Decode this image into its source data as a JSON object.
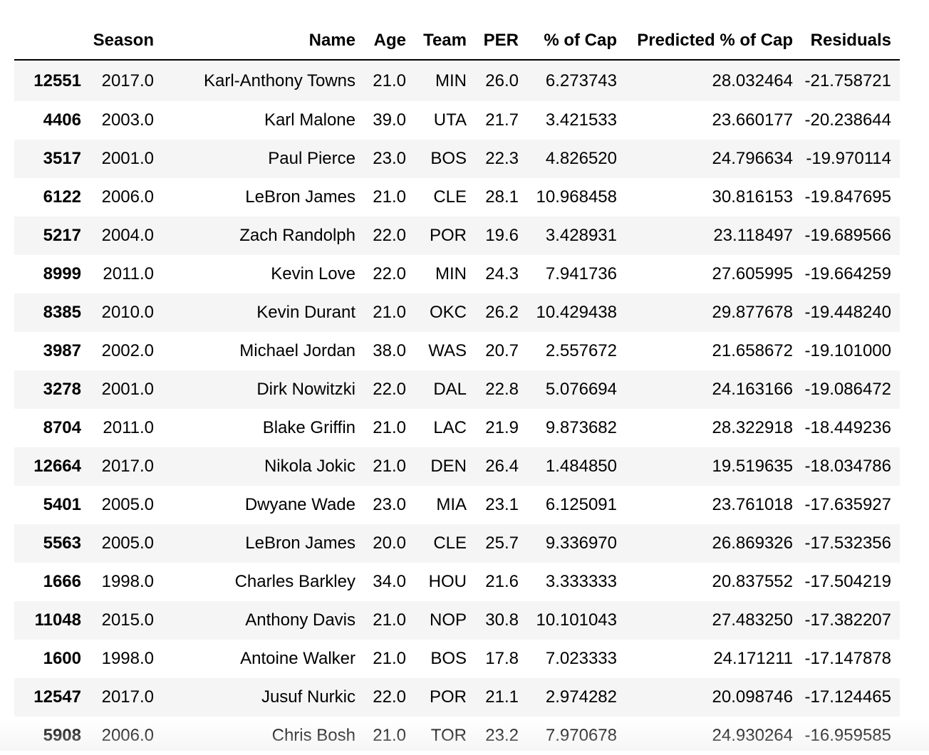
{
  "table": {
    "columns": [
      "",
      "Season",
      "Name",
      "Age",
      "Team",
      "PER",
      "% of Cap",
      "Predicted % of Cap",
      "Residuals"
    ],
    "rows": [
      {
        "index": "12551",
        "season": "2017.0",
        "name": "Karl-Anthony Towns",
        "age": "21.0",
        "team": "MIN",
        "per": "26.0",
        "pct_cap": "6.273743",
        "pred_pct_cap": "28.032464",
        "residuals": "-21.758721"
      },
      {
        "index": "4406",
        "season": "2003.0",
        "name": "Karl Malone",
        "age": "39.0",
        "team": "UTA",
        "per": "21.7",
        "pct_cap": "3.421533",
        "pred_pct_cap": "23.660177",
        "residuals": "-20.238644"
      },
      {
        "index": "3517",
        "season": "2001.0",
        "name": "Paul Pierce",
        "age": "23.0",
        "team": "BOS",
        "per": "22.3",
        "pct_cap": "4.826520",
        "pred_pct_cap": "24.796634",
        "residuals": "-19.970114"
      },
      {
        "index": "6122",
        "season": "2006.0",
        "name": "LeBron James",
        "age": "21.0",
        "team": "CLE",
        "per": "28.1",
        "pct_cap": "10.968458",
        "pred_pct_cap": "30.816153",
        "residuals": "-19.847695"
      },
      {
        "index": "5217",
        "season": "2004.0",
        "name": "Zach Randolph",
        "age": "22.0",
        "team": "POR",
        "per": "19.6",
        "pct_cap": "3.428931",
        "pred_pct_cap": "23.118497",
        "residuals": "-19.689566"
      },
      {
        "index": "8999",
        "season": "2011.0",
        "name": "Kevin Love",
        "age": "22.0",
        "team": "MIN",
        "per": "24.3",
        "pct_cap": "7.941736",
        "pred_pct_cap": "27.605995",
        "residuals": "-19.664259"
      },
      {
        "index": "8385",
        "season": "2010.0",
        "name": "Kevin Durant",
        "age": "21.0",
        "team": "OKC",
        "per": "26.2",
        "pct_cap": "10.429438",
        "pred_pct_cap": "29.877678",
        "residuals": "-19.448240"
      },
      {
        "index": "3987",
        "season": "2002.0",
        "name": "Michael Jordan",
        "age": "38.0",
        "team": "WAS",
        "per": "20.7",
        "pct_cap": "2.557672",
        "pred_pct_cap": "21.658672",
        "residuals": "-19.101000"
      },
      {
        "index": "3278",
        "season": "2001.0",
        "name": "Dirk Nowitzki",
        "age": "22.0",
        "team": "DAL",
        "per": "22.8",
        "pct_cap": "5.076694",
        "pred_pct_cap": "24.163166",
        "residuals": "-19.086472"
      },
      {
        "index": "8704",
        "season": "2011.0",
        "name": "Blake Griffin",
        "age": "21.0",
        "team": "LAC",
        "per": "21.9",
        "pct_cap": "9.873682",
        "pred_pct_cap": "28.322918",
        "residuals": "-18.449236"
      },
      {
        "index": "12664",
        "season": "2017.0",
        "name": "Nikola Jokic",
        "age": "21.0",
        "team": "DEN",
        "per": "26.4",
        "pct_cap": "1.484850",
        "pred_pct_cap": "19.519635",
        "residuals": "-18.034786"
      },
      {
        "index": "5401",
        "season": "2005.0",
        "name": "Dwyane Wade",
        "age": "23.0",
        "team": "MIA",
        "per": "23.1",
        "pct_cap": "6.125091",
        "pred_pct_cap": "23.761018",
        "residuals": "-17.635927"
      },
      {
        "index": "5563",
        "season": "2005.0",
        "name": "LeBron James",
        "age": "20.0",
        "team": "CLE",
        "per": "25.7",
        "pct_cap": "9.336970",
        "pred_pct_cap": "26.869326",
        "residuals": "-17.532356"
      },
      {
        "index": "1666",
        "season": "1998.0",
        "name": "Charles Barkley",
        "age": "34.0",
        "team": "HOU",
        "per": "21.6",
        "pct_cap": "3.333333",
        "pred_pct_cap": "20.837552",
        "residuals": "-17.504219"
      },
      {
        "index": "11048",
        "season": "2015.0",
        "name": "Anthony Davis",
        "age": "21.0",
        "team": "NOP",
        "per": "30.8",
        "pct_cap": "10.101043",
        "pred_pct_cap": "27.483250",
        "residuals": "-17.382207"
      },
      {
        "index": "1600",
        "season": "1998.0",
        "name": "Antoine Walker",
        "age": "21.0",
        "team": "BOS",
        "per": "17.8",
        "pct_cap": "7.023333",
        "pred_pct_cap": "24.171211",
        "residuals": "-17.147878"
      },
      {
        "index": "12547",
        "season": "2017.0",
        "name": "Jusuf Nurkic",
        "age": "22.0",
        "team": "POR",
        "per": "21.1",
        "pct_cap": "2.974282",
        "pred_pct_cap": "20.098746",
        "residuals": "-17.124465"
      },
      {
        "index": "5908",
        "season": "2006.0",
        "name": "Chris Bosh",
        "age": "21.0",
        "team": "TOR",
        "per": "23.2",
        "pct_cap": "7.970678",
        "pred_pct_cap": "24.930264",
        "residuals": "-16.959585"
      }
    ]
  }
}
